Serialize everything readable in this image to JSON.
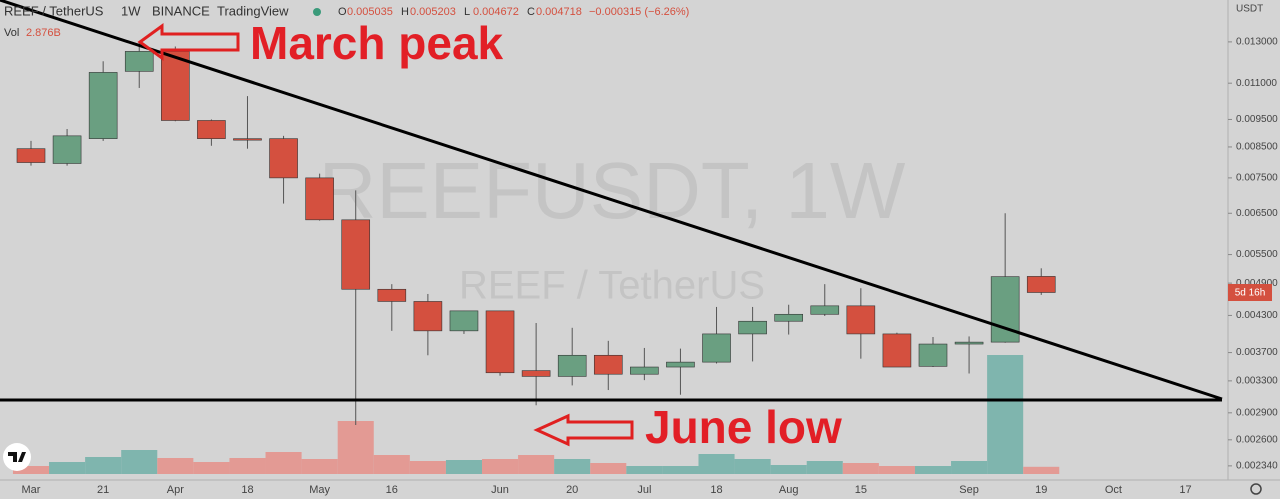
{
  "header": {
    "symbol": "REEF / TetherUS",
    "interval": "1W",
    "exchange": "BINANCE",
    "source": "TradingView",
    "ohlc": [
      {
        "key": "O",
        "value": "0.005035"
      },
      {
        "key": "H",
        "value": "0.005203"
      },
      {
        "key": "L",
        "value": "0.004672"
      },
      {
        "key": "C",
        "value": "0.004718"
      }
    ],
    "change": "−0.000315 (−6.26%)",
    "volume_key": "Vol",
    "volume_label": "2.876B",
    "currency": "USDT",
    "countdown": "5d 16h"
  },
  "chart_data": {
    "type": "candlestick",
    "watermark": "REEFUSDT, 1W",
    "watermark_subtitle": "REEF / TetherUS",
    "annotations": [
      "March peak",
      "June low"
    ],
    "log_scale": true,
    "up_color": "#6a9f81",
    "down_color": "#d4503f",
    "volume_up_color": "#7fb5ae",
    "volume_down_color": "#e39a94",
    "categories": [
      "Mar",
      null,
      "21",
      null,
      "Apr",
      null,
      "18",
      null,
      "May",
      null,
      "16",
      null,
      null,
      "Jun",
      null,
      "20",
      null,
      "Jul",
      null,
      "18",
      null,
      "Aug",
      null,
      "15",
      null,
      null,
      "Sep",
      null,
      "19",
      null,
      "Oct",
      null,
      "17"
    ],
    "open": [
      0.00844,
      0.00795,
      0.00879,
      0.01154,
      0.01251,
      0.00946,
      0.00879,
      0.00879,
      0.0075,
      0.00633,
      0.00478,
      0.00455,
      0.00404,
      0.00438,
      0.00344,
      0.00336,
      0.00366,
      0.00339,
      0.00349,
      0.00356,
      0.00399,
      0.0042,
      0.00432,
      0.00447,
      0.00399,
      0.0035,
      0.00383,
      0.00386,
      0.005035,
      null,
      null,
      null,
      null
    ],
    "high": [
      0.00871,
      0.00914,
      0.01202,
      0.013,
      0.01276,
      0.0095,
      0.01044,
      0.00889,
      0.00763,
      0.00713,
      0.00488,
      0.00469,
      0.00438,
      0.00438,
      0.00417,
      0.00409,
      0.00388,
      0.00377,
      0.00376,
      0.00445,
      0.00445,
      0.00449,
      0.00488,
      0.0048,
      0.00401,
      0.00394,
      0.00395,
      0.0065,
      0.005203,
      null,
      null,
      null,
      null
    ],
    "low": [
      0.00788,
      0.00788,
      0.00871,
      0.01079,
      0.00943,
      0.00854,
      0.00844,
      0.00676,
      0.00631,
      0.00276,
      0.00404,
      0.00366,
      0.00399,
      0.00337,
      0.00299,
      0.00324,
      0.00318,
      0.00331,
      0.00312,
      0.00354,
      0.00357,
      0.00398,
      0.00429,
      0.00361,
      0.00349,
      0.00349,
      0.0034,
      0.00385,
      0.004672,
      null,
      null,
      null,
      null
    ],
    "close": [
      0.00798,
      0.00889,
      0.01149,
      0.01251,
      0.00946,
      0.00879,
      0.00875,
      0.0075,
      0.00633,
      0.00478,
      0.00455,
      0.00404,
      0.00438,
      0.00341,
      0.00336,
      0.00366,
      0.00339,
      0.00349,
      0.00356,
      0.00399,
      0.0042,
      0.00432,
      0.00447,
      0.00399,
      0.00349,
      0.00383,
      0.00386,
      0.00503,
      0.004718,
      null,
      null,
      null,
      null
    ],
    "volume": [
      3.2,
      4.8,
      6.8,
      9.6,
      6.4,
      4.8,
      6.4,
      8.8,
      6,
      21.2,
      7.6,
      5.2,
      5.6,
      6,
      7.6,
      6,
      4.4,
      3.2,
      3.2,
      8,
      6,
      3.6,
      5.2,
      4.4,
      3.2,
      3.2,
      5.2,
      47.6,
      2.876,
      null,
      null,
      null,
      null
    ],
    "ylim": [
      0.00221,
      0.0154
    ],
    "yticks": [
      {
        "value": 0.013,
        "label": "0.013000"
      },
      {
        "value": 0.011,
        "label": "0.011000"
      },
      {
        "value": 0.0095,
        "label": "0.009500"
      },
      {
        "value": 0.0085,
        "label": "0.008500"
      },
      {
        "value": 0.0075,
        "label": "0.007500"
      },
      {
        "value": 0.0065,
        "label": "0.006500"
      },
      {
        "value": 0.0055,
        "label": "0.005500"
      },
      {
        "value": 0.0049,
        "label": "0.004900"
      },
      {
        "value": 0.0043,
        "label": "0.004300"
      },
      {
        "value": 0.0037,
        "label": "0.003700"
      },
      {
        "value": 0.0033,
        "label": "0.003300"
      },
      {
        "value": 0.0029,
        "label": "0.002900"
      },
      {
        "value": 0.0026,
        "label": "0.002600"
      },
      {
        "value": 0.00234,
        "label": "0.002340"
      }
    ]
  }
}
